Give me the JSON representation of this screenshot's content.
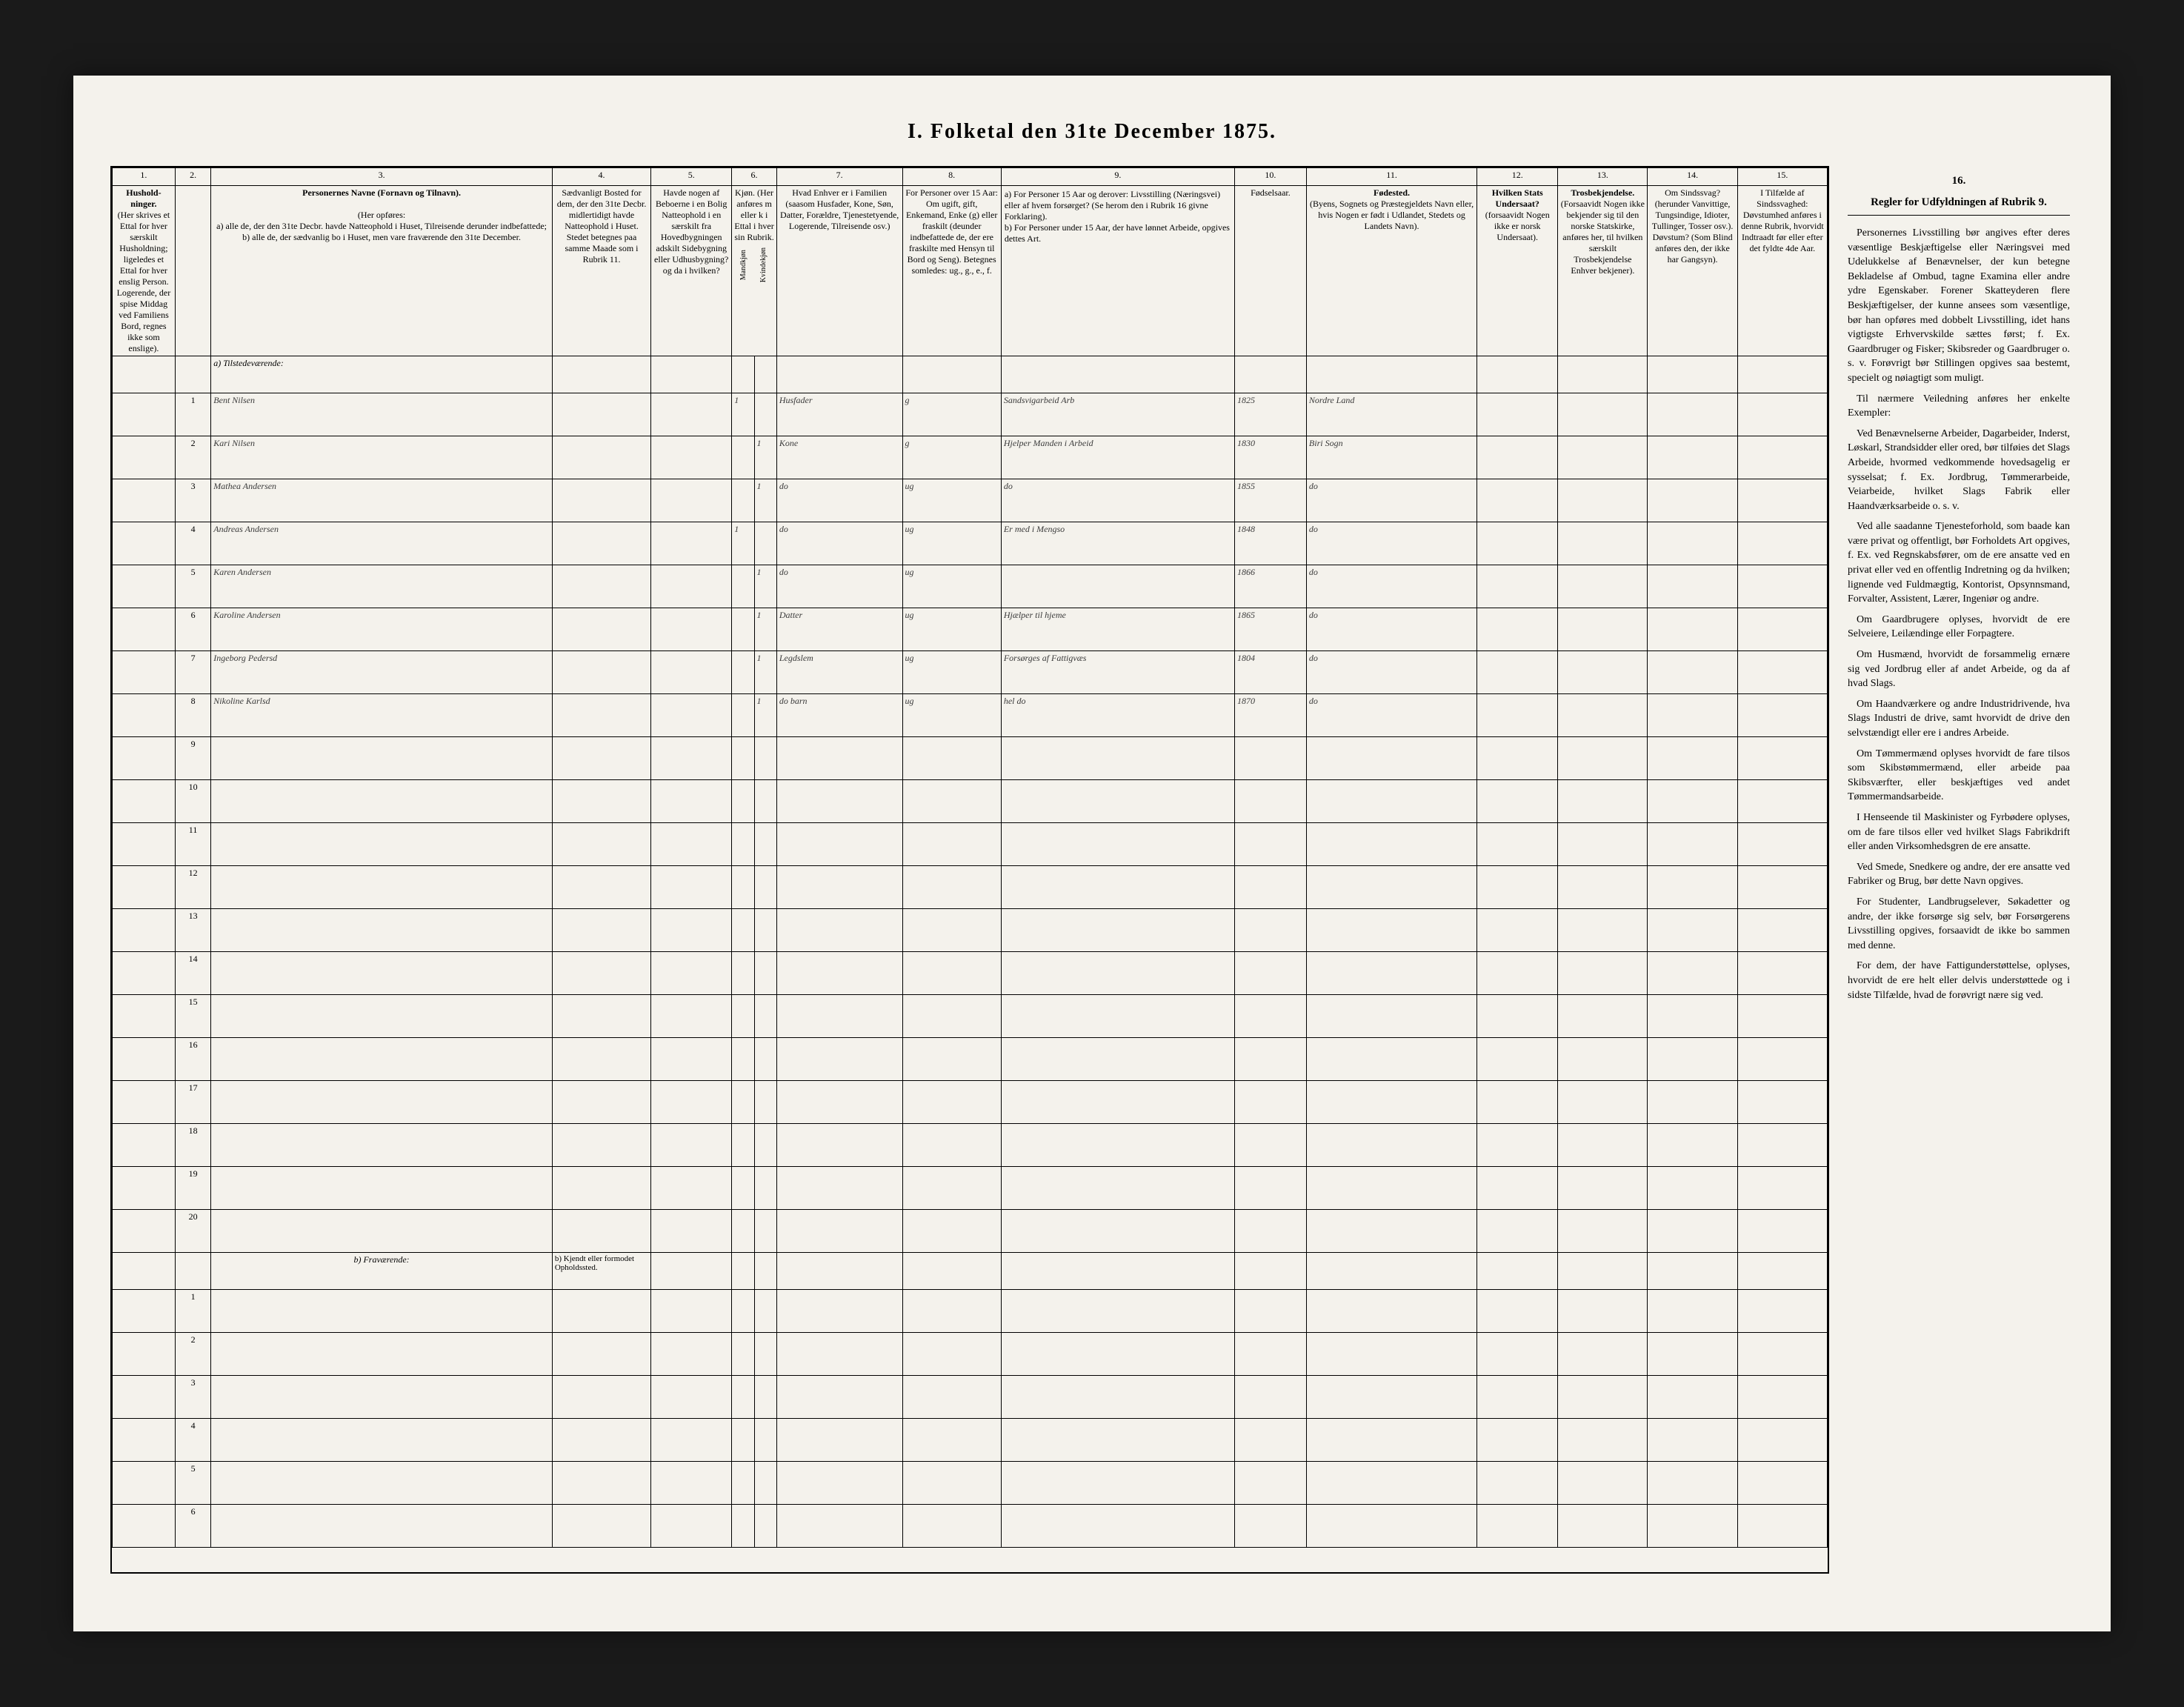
{
  "title": "I. Folketal den 31te December 1875.",
  "colnums": [
    "1.",
    "2.",
    "3.",
    "4.",
    "5.",
    "6.",
    "7.",
    "8.",
    "9.",
    "10.",
    "11.",
    "12.",
    "13.",
    "14.",
    "15.",
    "16."
  ],
  "headers": {
    "c1": "Hushold-ninger.",
    "c1_sub": "(Her skrives et Ettal for hver særskilt Husholdning; ligeledes et Ettal for hver enslig Person. Logerende, der spise Middag ved Familiens Bord, regnes ikke som enslige).",
    "c3_title": "Personernes Navne (Fornavn og Tilnavn).",
    "c3_sub": "(Her opføres:\na) alle de, der den 31te Decbr. havde Natteophold i Huset, Tilreisende derunder indbefattede;\nb) alle de, der sædvanlig bo i Huset, men vare fraværende den 31te December.",
    "c4": "Sædvanligt Bosted for dem, der den 31te Decbr. midlertidigt havde Natteophold i Huset. Stedet betegnes paa samme Maade som i Rubrik 11.",
    "c5": "Havde nogen af Beboerne i en Bolig Natteophold i en særskilt fra Hovedbygningen adskilt Sidebygning eller Udhusbygning? og da i hvilken?",
    "c6": "Kjøn. (Her anføres m eller k i Ettal i hver sin Rubrik.",
    "c6a": "Mandkjøn",
    "c6b": "Kvindekjøn",
    "c7": "Hvad Enhver er i Familien (saasom Husfader, Kone, Søn, Datter, Forældre, Tjenestetyende, Logerende, Tilreisende osv.)",
    "c8": "For Personer over 15 Aar: Om ugift, gift, Enkemand, Enke (g) eller fraskilt (deunder indbefattede de, der ere fraskilte med Hensyn til Bord og Seng). Betegnes somledes: ug., g., e., f.",
    "c9": "a) For Personer 15 Aar og derover: Livsstilling (Næringsvei) eller af hvem forsørget? (Se herom den i Rubrik 16 givne Forklaring).\nb) For Personer under 15 Aar, der have lønnet Arbeide, opgives dettes Art.",
    "c10": "Fødselsaar.",
    "c11": "Fødested.",
    "c11_sub": "(Byens, Sognets og Præstegjeldets Navn eller, hvis Nogen er født i Udlandet, Stedets og Landets Navn).",
    "c12": "Hvilken Stats Undersaat?",
    "c12_sub": "(forsaavidt Nogen ikke er norsk Undersaat).",
    "c13": "Trosbekjendelse.",
    "c13_sub": "(Forsaavidt Nogen ikke bekjender sig til den norske Statskirke, anføres her, til hvilken særskilt Trosbekjendelse Enhver bekjener).",
    "c14": "Om Sindssvag? (herunder Vanvittige, Tungsindige, Idioter, Tullinger, Tosser osv.). Døvstum? (Som Blind anføres den, der ikke har Gangsyn).",
    "c15": "I Tilfælde af Sindssvaghed: Døvstumhed anføres i denne Rubrik, hvorvidt Indtraadt før eller efter det fyldte 4de Aar.",
    "c16": "Regler for Udfyldningen af Rubrik 9."
  },
  "section_a": "a) Tilstedeværende:",
  "section_b": "b) Fraværende:",
  "section_b_note": "b) Kjendt eller formodet Opholdssted.",
  "rows_a": [
    {
      "n": "1",
      "name": "Bent Nilsen",
      "c6a": "1",
      "c6b": "",
      "c7": "Husfader",
      "c8": "g",
      "c9": "Sandsvigarbeid Arb",
      "c10": "1825",
      "c11": "Nordre Land"
    },
    {
      "n": "2",
      "name": "Kari Nilsen",
      "c6a": "",
      "c6b": "1",
      "c7": "Kone",
      "c8": "g",
      "c9": "Hjelper Manden i Arbeid",
      "c10": "1830",
      "c11": "Biri Sogn"
    },
    {
      "n": "3",
      "name": "Mathea Andersen",
      "c6a": "",
      "c6b": "1",
      "c7": "do",
      "c8": "ug",
      "c9": "do",
      "c10": "1855",
      "c11": "do"
    },
    {
      "n": "4",
      "name": "Andreas Andersen",
      "c6a": "1",
      "c6b": "",
      "c7": "do",
      "c8": "ug",
      "c9": "Er med i Mengso",
      "c10": "1848",
      "c11": "do"
    },
    {
      "n": "5",
      "name": "Karen Andersen",
      "c6a": "",
      "c6b": "1",
      "c7": "do",
      "c8": "ug",
      "c9": "",
      "c10": "1866",
      "c11": "do"
    },
    {
      "n": "6",
      "name": "Karoline Andersen",
      "c6a": "",
      "c6b": "1",
      "c7": "Datter",
      "c8": "ug",
      "c9": "Hjælper til hjeme",
      "c10": "1865",
      "c11": "do"
    },
    {
      "n": "7",
      "name": "Ingeborg Pedersd",
      "c6a": "",
      "c6b": "1",
      "c7": "Legdslem",
      "c8": "ug",
      "c9": "Forsørges af Fattigvæs",
      "c10": "1804",
      "c11": "do"
    },
    {
      "n": "8",
      "name": "Nikoline Karlsd",
      "c6a": "",
      "c6b": "1",
      "c7": "do barn",
      "c8": "ug",
      "c9": "hel do",
      "c10": "1870",
      "c11": "do"
    },
    {
      "n": "9"
    },
    {
      "n": "10"
    },
    {
      "n": "11"
    },
    {
      "n": "12"
    },
    {
      "n": "13"
    },
    {
      "n": "14"
    },
    {
      "n": "15"
    },
    {
      "n": "16"
    },
    {
      "n": "17"
    },
    {
      "n": "18"
    },
    {
      "n": "19"
    },
    {
      "n": "20"
    }
  ],
  "rows_b": [
    {
      "n": "1"
    },
    {
      "n": "2"
    },
    {
      "n": "3"
    },
    {
      "n": "4"
    },
    {
      "n": "5"
    },
    {
      "n": "6"
    }
  ],
  "sidebar": {
    "heading": "16.",
    "subheading": "Regler for Udfyldningen af Rubrik 9.",
    "p1": "Personernes Livsstilling bør angives efter deres væsentlige Beskjæftigelse eller Næringsvei med Udelukkelse af Benævnelser, der kun betegne Bekladelse af Ombud, tagne Examina eller andre ydre Egenskaber. Forener Skatteyderen flere Beskjæftigelser, der kunne ansees som væsentlige, bør han opføres med dobbelt Livsstilling, idet hans vigtigste Erhvervskilde sættes først; f. Ex. Gaardbruger og Fisker; Skibsreder og Gaardbruger o. s. v. Forøvrigt bør Stillingen opgives saa bestemt, specielt og nøiagtigt som muligt.",
    "p2": "Til nærmere Veiledning anføres her enkelte Exempler:",
    "p3": "Ved Benævnelserne Arbeider, Dagarbeider, Inderst, Løskarl, Strandsidder eller ored, bør tilføies det Slags Arbeide, hvormed vedkommende hovedsagelig er sysselsat; f. Ex. Jordbrug, Tømmerarbeide, Veiarbeide, hvilket Slags Fabrik eller Haandværksarbeide o. s. v.",
    "p4": "Ved alle saadanne Tjenesteforhold, som baade kan være privat og offentligt, bør Forholdets Art opgives, f. Ex. ved Regnskabsfører, om de ere ansatte ved en privat eller ved en offentlig Indretning og da hvilken; lignende ved Fuldmægtig, Kontorist, Opsynnsmand, Forvalter, Assistent, Lærer, Ingeniør og andre.",
    "p5": "Om Gaardbrugere oplyses, hvorvidt de ere Selveiere, Leilændinge eller Forpagtere.",
    "p6": "Om Husmænd, hvorvidt de forsammelig ernære sig ved Jordbrug eller af andet Arbeide, og da af hvad Slags.",
    "p7": "Om Haandværkere og andre Industridrivende, hva Slags Industri de drive, samt hvorvidt de drive den selvstændigt eller ere i andres Arbeide.",
    "p8": "Om Tømmermænd oplyses hvorvidt de fare tilsos som Skibstømmermænd, eller arbeide paa Skibsværfter, eller beskjæftiges ved andet Tømmermandsarbeide.",
    "p9": "I Henseende til Maskinister og Fyrbødere oplyses, om de fare tilsos eller ved hvilket Slags Fabrikdrift eller anden Virksomhedsgren de ere ansatte.",
    "p10": "Ved Smede, Snedkere og andre, der ere ansatte ved Fabriker og Brug, bør dette Navn opgives.",
    "p11": "For Studenter, Landbrugselever, Søkadetter og andre, der ikke forsørge sig selv, bør Forsørgerens Livsstilling opgives, forsaavidt de ikke bo sammen med denne.",
    "p12": "For dem, der have Fattigunderstøttelse, oplyses, hvorvidt de ere helt eller delvis understøttede og i sidste Tilfælde, hvad de forøvrigt nære sig ved."
  }
}
